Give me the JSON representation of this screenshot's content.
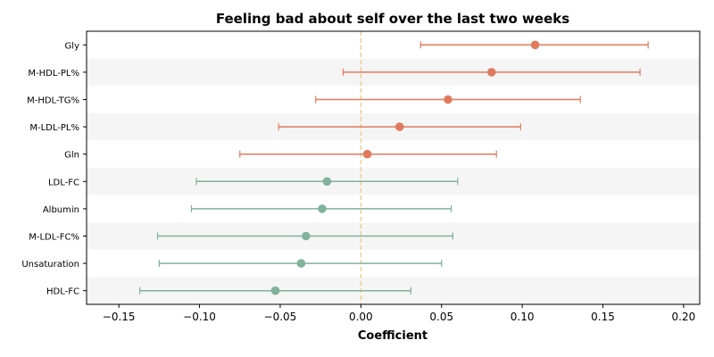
{
  "chart_data": {
    "type": "scatter",
    "title": "Feeling bad about self over the last two weeks",
    "xlabel": "Coefficient",
    "ylabel": "",
    "xlim": [
      -0.17,
      0.21
    ],
    "xticks": [
      -0.15,
      -0.1,
      -0.05,
      0.0,
      0.05,
      0.1,
      0.15,
      0.2
    ],
    "xtick_labels": [
      "−0.15",
      "−0.10",
      "−0.05",
      "0.00",
      "0.05",
      "0.10",
      "0.15",
      "0.20"
    ],
    "reference_line_x": 0,
    "colors": {
      "positive": "#e07a5f",
      "negative": "#81b29a",
      "reference": "#f2cc8f",
      "band": "#f5f5f5"
    },
    "categories": [
      "Gly",
      "M-HDL-PL%",
      "M-HDL-TG%",
      "M-LDL-PL%",
      "Gln",
      "LDL-FC",
      "Albumin",
      "M-LDL-FC%",
      "Unsaturation",
      "HDL-FC"
    ],
    "values": [
      0.108,
      0.081,
      0.054,
      0.024,
      0.004,
      -0.021,
      -0.024,
      -0.034,
      -0.037,
      -0.053
    ],
    "ci_lower": [
      0.037,
      -0.011,
      -0.028,
      -0.051,
      -0.075,
      -0.102,
      -0.105,
      -0.126,
      -0.125,
      -0.137
    ],
    "ci_upper": [
      0.178,
      0.173,
      0.136,
      0.099,
      0.084,
      0.06,
      0.056,
      0.057,
      0.05,
      0.031
    ]
  }
}
